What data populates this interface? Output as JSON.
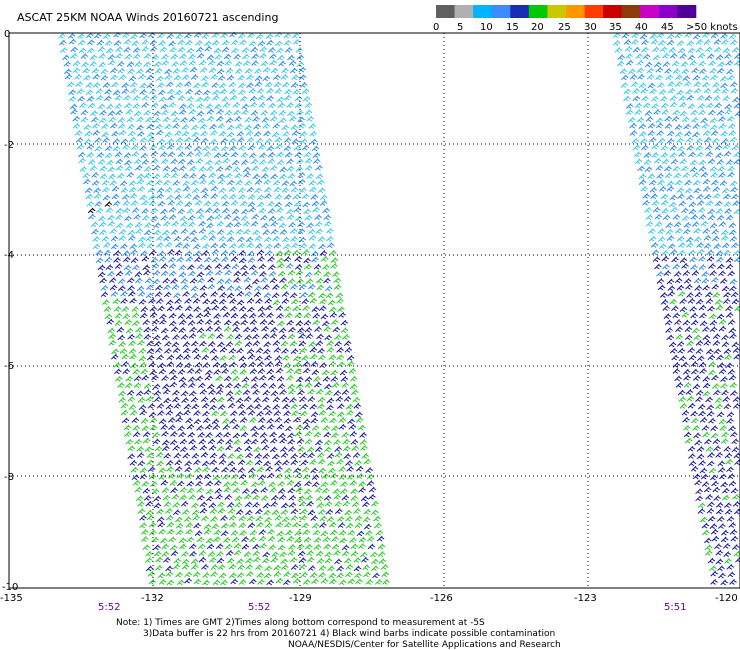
{
  "title": "ASCAT 25KM NOAA Winds 20160721 ascending",
  "legend": {
    "labels": [
      "0",
      "5",
      "10",
      "15",
      "20",
      "25",
      "30",
      "35",
      "40",
      "45",
      ">50 knots"
    ],
    "colors": [
      "#606060",
      "#b0b0b0",
      "#00b4ff",
      "#3c8cff",
      "#1a2cb4",
      "#00c800",
      "#c8c800",
      "#ff9600",
      "#ff3c00",
      "#c80000",
      "#8c3c0a",
      "#c800c8",
      "#8c00c8",
      "#500096"
    ]
  },
  "axes": {
    "y_ticks": [
      "0",
      "-2",
      "-4",
      "-6",
      "-8",
      "-10"
    ],
    "x_ticks": [
      "-135",
      "-132",
      "-129",
      "-126",
      "-123",
      "-120"
    ]
  },
  "pass_times": [
    "5:52",
    "5:52",
    "5:51"
  ],
  "notes": [
    "Note: 1) Times are GMT 2)Times along bottom correspond to measurement at -5S",
    "3)Data buffer is 22 hrs from 20160721 4) Black wind barbs indicate possible contamination",
    "NOAA/NESDIS/Center for Satellite Applications and Research"
  ],
  "colors": {
    "barb_light": "#33c8ee",
    "barb_mid": "#2a8cf0",
    "barb_dark": "#1a1aa0",
    "barb_green": "#22cc22",
    "barb_black": "#000000",
    "time_text": "#6a0a8a"
  }
}
